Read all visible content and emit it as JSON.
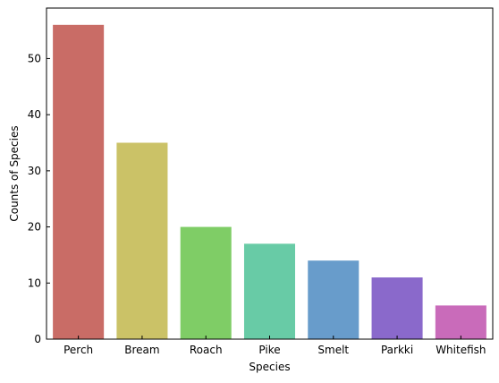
{
  "chart_data": {
    "type": "bar",
    "title": "",
    "xlabel": "Species",
    "ylabel": "Counts of Species",
    "categories": [
      "Perch",
      "Bream",
      "Roach",
      "Pike",
      "Smelt",
      "Parkki",
      "Whitefish"
    ],
    "values": [
      56,
      35,
      20,
      17,
      14,
      11,
      6
    ],
    "colors": [
      "#c96c66",
      "#cbc267",
      "#7fcd66",
      "#68cba6",
      "#689ccb",
      "#8a69cb",
      "#c96bba"
    ],
    "ylim": [
      0,
      59
    ],
    "yticks": [
      0,
      10,
      20,
      30,
      40,
      50
    ],
    "grid": false,
    "legend": "none"
  }
}
